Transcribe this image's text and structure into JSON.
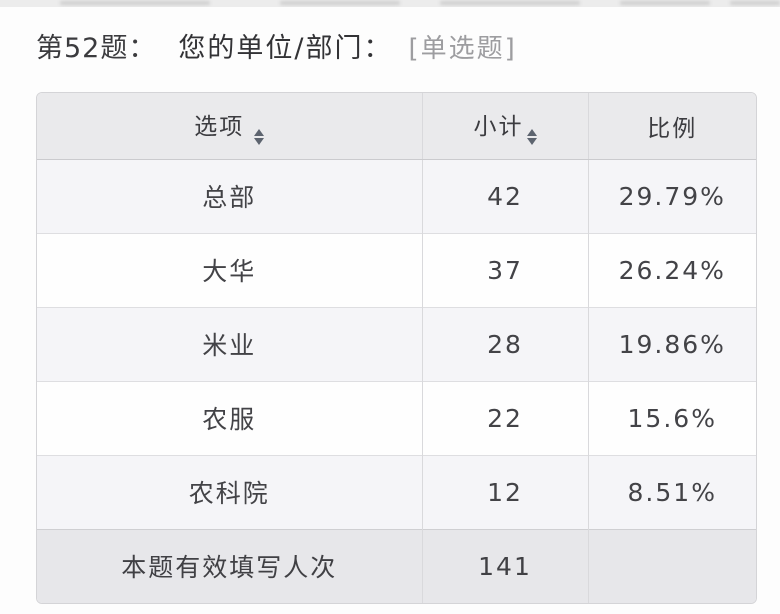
{
  "question": {
    "number": "第52题：",
    "title": "您的单位/部门：",
    "type": "[单选题]"
  },
  "table": {
    "headers": {
      "option": "选项",
      "count": "小计",
      "ratio": "比例"
    },
    "rows": [
      {
        "option": "总部",
        "count": "42",
        "ratio": "29.79%"
      },
      {
        "option": "大华",
        "count": "37",
        "ratio": "26.24%"
      },
      {
        "option": "米业",
        "count": "28",
        "ratio": "19.86%"
      },
      {
        "option": "农服",
        "count": "22",
        "ratio": "15.6%"
      },
      {
        "option": "农科院",
        "count": "12",
        "ratio": "8.51%"
      }
    ],
    "footer": {
      "label": "本题有效填写人次",
      "count": "141",
      "ratio": ""
    }
  },
  "icons": {
    "option_sort": "sort-arrows",
    "count_sort": "sort-arrows"
  },
  "colors": {
    "header_bg": "#eaeaec",
    "footer_bg": "#e7e7ea",
    "zebra_row_bg": "#f5f5f8",
    "plain_row_bg": "#fefefe",
    "border": "#d4d4d7",
    "text": "#3f3f42",
    "muted_text": "#9d9da0",
    "sort_arrow": "#5d646f"
  }
}
